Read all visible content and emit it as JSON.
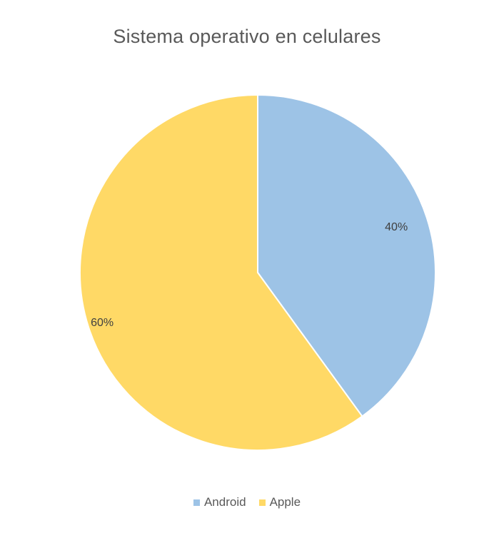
{
  "chart_data": {
    "type": "pie",
    "title": "Sistema operativo en celulares",
    "categories": [
      "Android",
      "Apple"
    ],
    "values": [
      40,
      60
    ],
    "labels": [
      "40%",
      "60%"
    ],
    "colors": [
      "#9dc3e6",
      "#ffd966"
    ],
    "legend_position": "bottom",
    "start_angle": "top",
    "direction": "clockwise"
  }
}
